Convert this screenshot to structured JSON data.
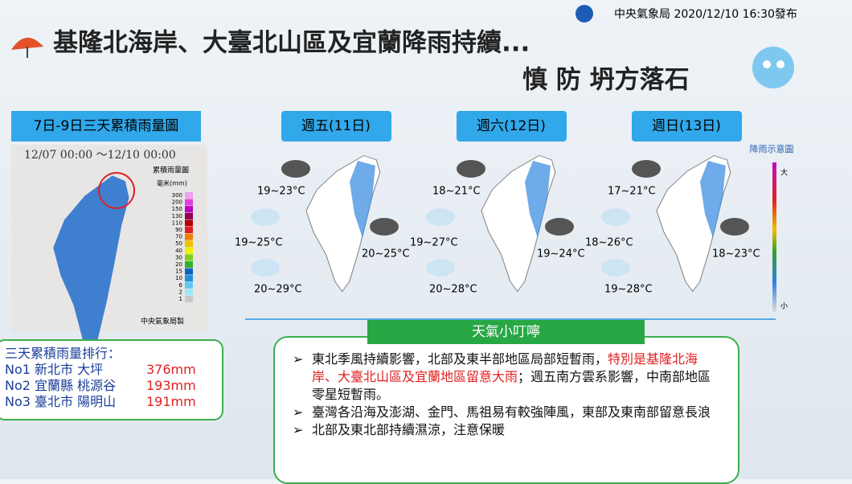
{
  "header": {
    "publisher": "中央氣象局 2020/12/10 16:30發布",
    "title": "基隆北海岸、大臺北山區及宜蘭降雨持續...",
    "subtitle": "慎 防 坍方落石"
  },
  "rain_map": {
    "title": "7日-9日三天累積雨量圖",
    "period": "12/07 00:00 ～12/10 00:00",
    "legend_title": "累積雨量圖",
    "legend_unit": "毫米(mm)",
    "legend_levels": [
      "300",
      "200",
      "150",
      "130",
      "110",
      "90",
      "70",
      "50",
      "40",
      "30",
      "20",
      "15",
      "10",
      "6",
      "2",
      "1"
    ],
    "credit": "中央氣象局製"
  },
  "ranking": {
    "title": "三天累積雨量排行：",
    "rows": [
      [
        "No1 新北市 大坪",
        "376mm"
      ],
      [
        "No2 宜蘭縣 桃源谷",
        "193mm"
      ],
      [
        "No3 臺北市 陽明山",
        "191mm"
      ]
    ]
  },
  "forecast": {
    "days": [
      {
        "label": "週五(11日)",
        "temps": [
          "19~23°C",
          "19~25°C",
          "20~25°C",
          "20~29°C"
        ]
      },
      {
        "label": "週六(12日)",
        "temps": [
          "18~21°C",
          "19~27°C",
          "19~24°C",
          "20~28°C"
        ]
      },
      {
        "label": "週日(13日)",
        "temps": [
          "17~21°C",
          "18~26°C",
          "18~23°C",
          "19~28°C"
        ]
      }
    ],
    "scale_title": "降雨示意圖",
    "scale_max": "大",
    "scale_min": "小"
  },
  "tips": {
    "title": "天氣小叮嚀",
    "items": [
      [
        "東北季風持續影響，北部及東半部地區局部短暫雨，",
        "特別是基隆北海岸、大臺北山區及宜蘭地區留意大雨",
        "；週五南方雲系影響，中南部地區零星短暫雨。"
      ],
      [
        "臺灣各沿海及澎湖、金門、馬祖易有較強陣風，東部及東南部留意長浪"
      ],
      [
        "北部及東北部持續濕涼，注意保暖"
      ]
    ]
  }
}
